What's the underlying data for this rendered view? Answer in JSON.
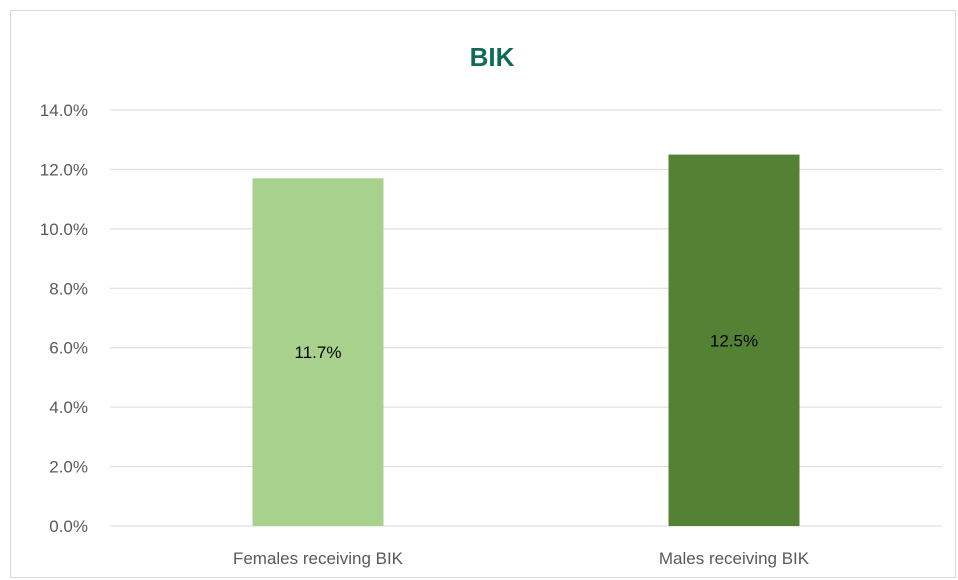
{
  "chart_data": {
    "type": "bar",
    "title": "BIK",
    "categories": [
      "Females receiving BIK",
      "Males receiving BIK"
    ],
    "values": [
      11.7,
      12.5
    ],
    "data_labels": [
      "11.7%",
      "12.5%"
    ],
    "bar_colors": [
      "#a9d18e",
      "#548235"
    ],
    "title_color": "#0e6b5c",
    "ylim": [
      0,
      14
    ],
    "yticks": [
      "0.0%",
      "2.0%",
      "4.0%",
      "6.0%",
      "8.0%",
      "10.0%",
      "12.0%",
      "14.0%"
    ],
    "ytick_values": [
      0,
      2,
      4,
      6,
      8,
      10,
      12,
      14
    ],
    "grid": true,
    "legend": "none",
    "xlabel": "",
    "ylabel": ""
  }
}
